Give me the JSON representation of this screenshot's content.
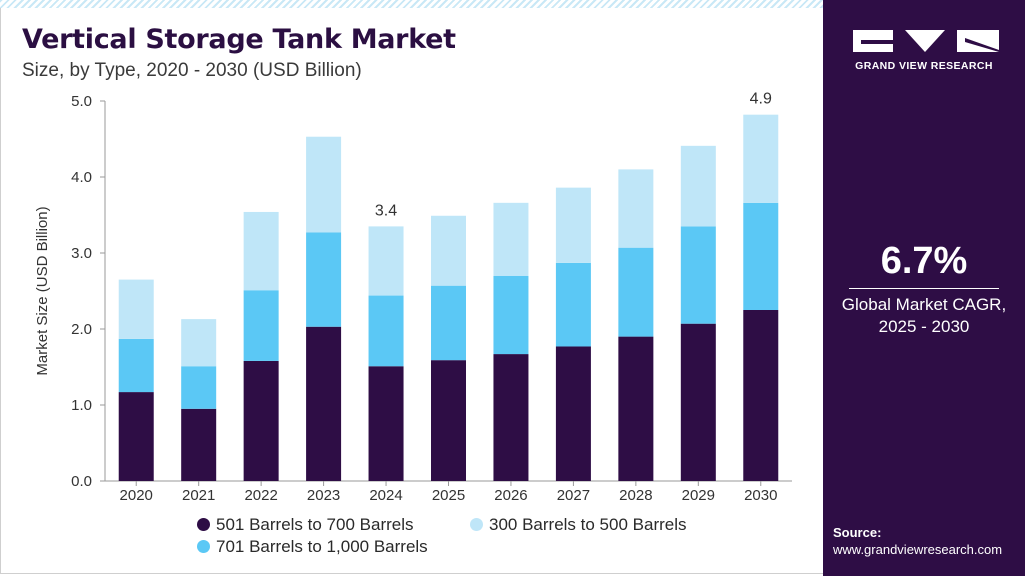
{
  "header": {
    "title": "Vertical Storage Tank Market",
    "subtitle": "Size, by Type, 2020 - 2030 (USD Billion)"
  },
  "sidebar": {
    "brand": "GRAND VIEW RESEARCH",
    "cagr_value": "6.7%",
    "cagr_label_line1": "Global Market CAGR,",
    "cagr_label_line2": "2025 - 2030",
    "source_title": "Source:",
    "source_url": "www.grandviewresearch.com"
  },
  "colors": {
    "background_panel": "#2e0d45",
    "title": "#2b0f42"
  },
  "chart_data": {
    "type": "bar",
    "stacked": true,
    "categories": [
      "2020",
      "2021",
      "2022",
      "2023",
      "2024",
      "2025",
      "2026",
      "2027",
      "2028",
      "2029",
      "2030"
    ],
    "series": [
      {
        "name": "501 Barrels to 700 Barrels",
        "color": "#2e0d45",
        "values": [
          1.17,
          0.95,
          1.58,
          2.03,
          1.51,
          1.59,
          1.67,
          1.77,
          1.9,
          2.07,
          2.25
        ]
      },
      {
        "name": "701 Barrels to 1,000 Barrels",
        "color": "#5bc8f5",
        "values": [
          0.7,
          0.56,
          0.93,
          1.24,
          0.93,
          0.98,
          1.03,
          1.1,
          1.17,
          1.28,
          1.41
        ]
      },
      {
        "name": "300 Barrels to 500 Barrels",
        "color": "#bfe6f8",
        "values": [
          0.78,
          0.62,
          1.03,
          1.26,
          0.91,
          0.92,
          0.96,
          0.99,
          1.03,
          1.06,
          1.16
        ]
      }
    ],
    "annotations": [
      {
        "category": "2024",
        "label": "3.4"
      },
      {
        "category": "2030",
        "label": "4.9"
      }
    ],
    "ylabel": "Market Size (USD Billion)",
    "xlabel": "",
    "ylim": [
      0,
      5
    ],
    "yticks": [
      "0.0",
      "1.0",
      "2.0",
      "3.0",
      "4.0",
      "5.0"
    ],
    "grid": false,
    "legend_position": "bottom"
  }
}
